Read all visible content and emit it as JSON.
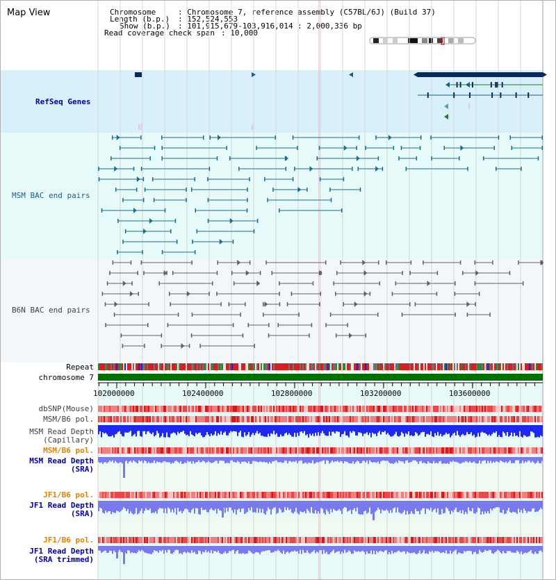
{
  "page": {
    "title": "Map View"
  },
  "info": {
    "chromosome_label": "Chromosome",
    "chromosome_value": ": Chromosome 7, reference assembly (C57BL/6J) (Build 37)",
    "length_label": "Length (b.p.)",
    "length_value": ": 152,524,553",
    "show_label": "Show (b.p.)",
    "show_value": ": 101,915,679-103,916,014 : 2,000,336 bp",
    "coverage_label": "Read coverage check span",
    "coverage_value": ": 10,000"
  },
  "tracks": {
    "refseq": "RefSeq Genes",
    "msm_bac": "MSM BAC end pairs",
    "b6n_bac": "B6N BAC end pairs",
    "repeat": "Repeat",
    "chromosome": "chromosome 7",
    "dbsnp": "dbSNP(Mouse)",
    "msm_b6_pol_1": "MSM/B6 pol.",
    "msm_depth_cap_1": "MSM Read Depth",
    "msm_depth_cap_2": "(Capillary)",
    "msm_b6_pol_2": "MSM/B6 pol.",
    "msm_depth_sra_1": "MSM Read Depth",
    "msm_depth_sra_2": "(SRA)",
    "jf1_b6_pol_1": "JF1/B6 pol.",
    "jf1_depth_sra_1": "JF1 Read Depth",
    "jf1_depth_sra_2": "(SRA)",
    "jf1_b6_pol_2": "JF1/B6 pol.",
    "jf1_depth_trim_1": "JF1 Read Depth",
    "jf1_depth_trim_2": "(SRA trimmed)"
  },
  "axis": {
    "ticks": [
      "102000000",
      "102400000",
      "102800000",
      "103200000",
      "103600000"
    ],
    "tick_values": [
      102000000,
      102400000,
      102800000,
      103200000,
      103600000
    ],
    "range_start": 101915679,
    "range_end": 103916014
  },
  "colors": {
    "refseq_bg": "#d8f0fa",
    "msm_bg": "#e6fafa",
    "b6n_bg": "#f4f7f9",
    "lower_bg": "#e8faf7",
    "sra_bg": "#f0faf0",
    "refseq_dark": "#0a2a5a",
    "refseq_mid": "#1e5a8c",
    "msm_feature": "#1a6e8c",
    "b6n_feature": "#606060",
    "chromosome": "#007000",
    "depth_capillary": "#1e28f0",
    "depth_sra": "#7a7af0",
    "pol_red": "#e03030",
    "label_blue": "#0000a0",
    "label_orange": "#e08000"
  },
  "icons": {
    "ideogram": "chromosome-ideogram",
    "left_arrow": "arrow-left-icon",
    "right_arrow": "arrow-right-icon"
  }
}
